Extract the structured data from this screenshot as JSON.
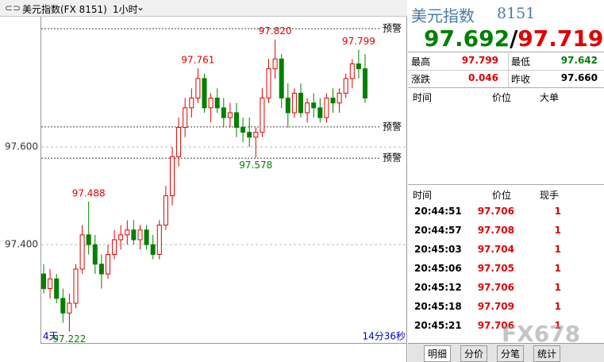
{
  "toolbar": {
    "symbol": "美元指数(FX 8151)",
    "period": "1小时"
  },
  "chart_data": {
    "type": "candlestick",
    "up_color": "#e00000",
    "down_color": "#008000",
    "open": [
      97.34,
      97.31,
      97.33,
      97.29,
      97.26,
      97.28,
      97.35,
      97.42,
      97.4,
      97.36,
      97.34,
      97.38,
      97.41,
      97.42,
      97.43,
      97.41,
      97.43,
      97.4,
      97.38,
      97.44,
      97.5,
      97.58,
      97.64,
      97.68,
      97.7,
      97.74,
      97.68,
      97.7,
      97.68,
      97.66,
      97.67,
      97.64,
      97.63,
      97.62,
      97.63,
      97.7,
      97.76,
      97.78,
      97.7,
      97.67,
      97.71,
      97.67,
      97.69,
      97.68,
      97.66,
      97.7,
      97.69,
      97.71,
      97.74,
      97.77,
      97.76
    ],
    "high": [
      97.36,
      97.35,
      97.34,
      97.31,
      97.3,
      97.36,
      97.44,
      97.488,
      97.42,
      97.38,
      97.4,
      97.43,
      97.44,
      97.45,
      97.45,
      97.44,
      97.44,
      97.42,
      97.45,
      97.52,
      97.6,
      97.66,
      97.7,
      97.72,
      97.761,
      97.75,
      97.71,
      97.72,
      97.7,
      97.69,
      97.69,
      97.66,
      97.66,
      97.64,
      97.72,
      97.78,
      97.82,
      97.79,
      97.73,
      97.72,
      97.73,
      97.7,
      97.71,
      97.7,
      97.71,
      97.72,
      97.72,
      97.75,
      97.78,
      97.799,
      97.79
    ],
    "low": [
      97.3,
      97.29,
      97.28,
      97.24,
      97.222,
      97.27,
      97.34,
      97.38,
      97.34,
      97.31,
      97.33,
      97.37,
      97.39,
      97.4,
      97.4,
      97.39,
      97.39,
      97.37,
      97.37,
      97.43,
      97.48,
      97.56,
      97.62,
      97.66,
      97.69,
      97.67,
      97.65,
      97.67,
      97.64,
      97.64,
      97.62,
      97.61,
      97.6,
      97.578,
      97.62,
      97.69,
      97.74,
      97.68,
      97.64,
      97.66,
      97.66,
      97.65,
      97.66,
      97.65,
      97.65,
      97.67,
      97.67,
      97.7,
      97.72,
      97.74,
      97.69
    ],
    "close": [
      97.31,
      97.33,
      97.29,
      97.26,
      97.28,
      97.35,
      97.42,
      97.4,
      97.36,
      97.34,
      97.38,
      97.41,
      97.42,
      97.43,
      97.41,
      97.43,
      97.4,
      97.38,
      97.44,
      97.5,
      97.58,
      97.64,
      97.68,
      97.7,
      97.74,
      97.68,
      97.7,
      97.68,
      97.66,
      97.67,
      97.64,
      97.63,
      97.62,
      97.63,
      97.7,
      97.76,
      97.78,
      97.7,
      97.67,
      97.71,
      97.67,
      97.69,
      97.68,
      97.66,
      97.7,
      97.69,
      97.71,
      97.74,
      97.77,
      97.76,
      97.7
    ],
    "ylim": [
      97.215,
      97.865
    ],
    "yticks": [
      {
        "value": 97.4,
        "label": "97.400"
      },
      {
        "value": 97.6,
        "label": "97.600"
      }
    ],
    "annotations": [
      {
        "value": 97.222,
        "label": "97.222"
      },
      {
        "value": 97.488,
        "label": "97.488"
      },
      {
        "value": 97.761,
        "label": "97.761"
      },
      {
        "value": 97.578,
        "label": "97.578"
      },
      {
        "value": 97.82,
        "label": "97.820"
      },
      {
        "value": 97.799,
        "label": "97.799"
      }
    ],
    "alerts": [
      {
        "value": 97.842,
        "label": "预警"
      },
      {
        "value": 97.641,
        "label": "预警"
      },
      {
        "value": 97.577,
        "label": "预警"
      }
    ],
    "x_start_label": "4天",
    "x_end_label": "14分36秒"
  },
  "quote": {
    "name": "美元指数",
    "code": "8151",
    "bid": "97.692",
    "separator": "/",
    "ask": "97.719",
    "stats": [
      [
        "最高",
        "97.799",
        "最低",
        "97.642"
      ],
      [
        "涨跌",
        "0.046",
        "昨收",
        "97.660"
      ]
    ],
    "big_header": [
      "时间",
      "价位",
      "大单"
    ],
    "trade_header": [
      "时间",
      "价位",
      "现手"
    ],
    "trades": [
      [
        "20:44:51",
        "97.706",
        "1"
      ],
      [
        "20:44:57",
        "97.708",
        "1"
      ],
      [
        "20:45:03",
        "97.704",
        "1"
      ],
      [
        "20:45:06",
        "97.705",
        "1"
      ],
      [
        "20:45:12",
        "97.706",
        "1"
      ],
      [
        "20:45:18",
        "97.709",
        "1"
      ],
      [
        "20:45:21",
        "97.706",
        "1"
      ]
    ],
    "tabs": [
      "明细",
      "分价",
      "分笔",
      "统计"
    ],
    "watermark": "FX678"
  }
}
